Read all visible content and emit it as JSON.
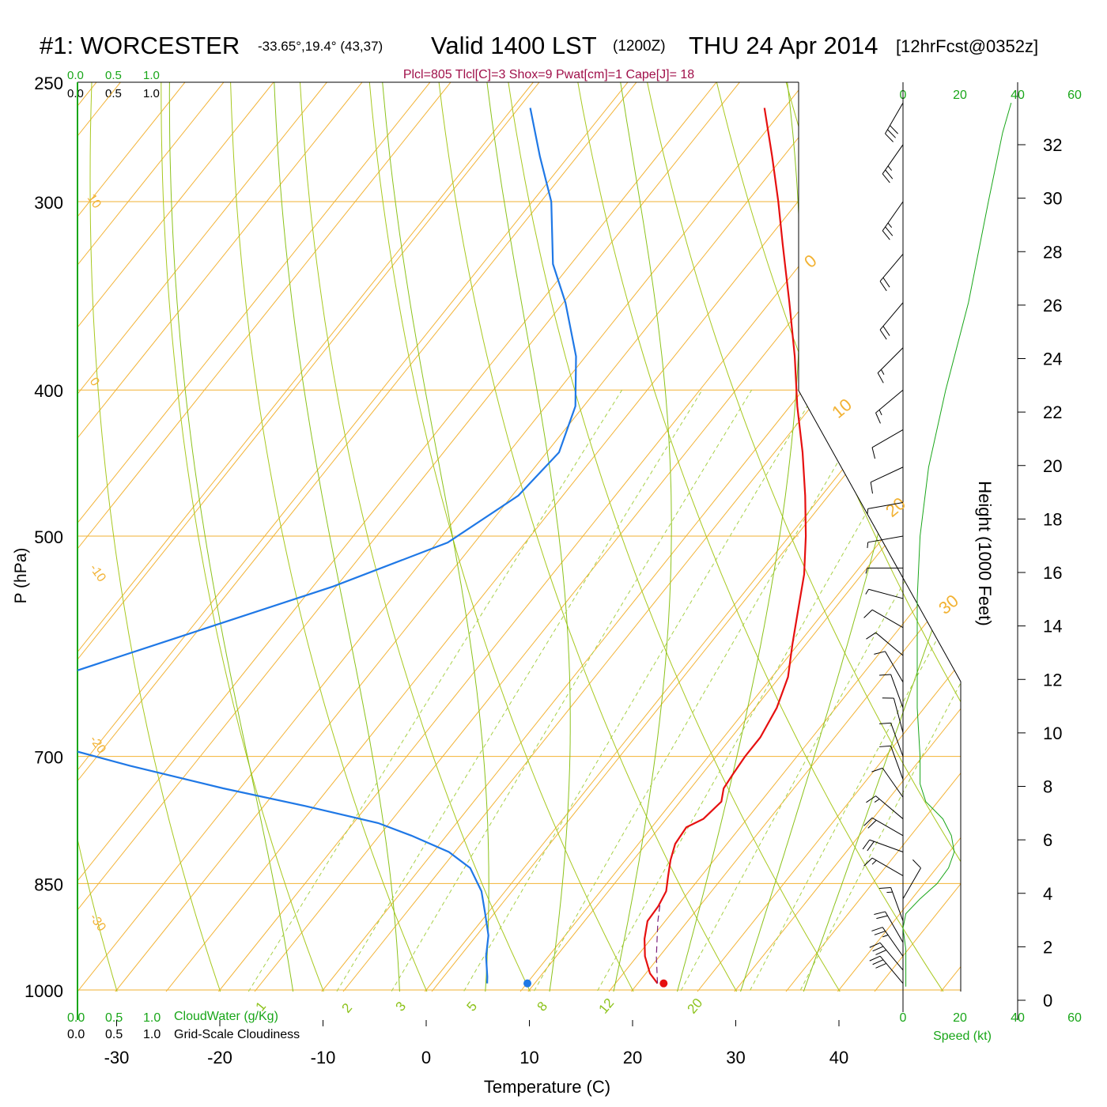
{
  "colors": {
    "isobar": "#f2b233",
    "isotherm": "#f2b233",
    "dry_adiabat": "#a8c81f",
    "moist_adiabat": "#8cc21a",
    "mixing_ratio": "#a8d048",
    "temperature": "#e61010",
    "dewpoint": "#1f78e6",
    "parcel": "#7a1f7a",
    "green_text": "#19a619",
    "indices_text": "#a0104a"
  },
  "header": {
    "station": "#1: WORCESTER",
    "coords": "-33.65°,19.4° (43,37)",
    "valid": "Valid 1400 LST",
    "zulu": "(1200Z)",
    "date": "THU 24 Apr 2014",
    "forecast": "[12hrFcst@0352z]",
    "indices": "Plcl=805 Tlcl[C]=3 Shox=9 Pwat[cm]=1 Cape[J]= 18"
  },
  "cloud_axis": {
    "top_ticks": [
      "0.0",
      "0.5",
      "1.0"
    ],
    "cloudwater_label": "CloudWater (g/Kg)",
    "cloudiness_label": "Grid-Scale Cloudiness"
  },
  "speed_axis": {
    "ticks": [
      "0",
      "20",
      "40",
      "60"
    ],
    "label": "Speed (kt)"
  },
  "chart_data": {
    "type": "skew-t",
    "xlabel": "Temperature (C)",
    "ylabel": "P (hPa)",
    "y2label": "Height (1000 Feet)",
    "x_ticks": [
      -30,
      -20,
      -10,
      0,
      10,
      20,
      30,
      40
    ],
    "pressure_levels": [
      250,
      300,
      400,
      500,
      700,
      850,
      1000
    ],
    "height_ticks_kft": [
      0,
      2,
      4,
      6,
      8,
      10,
      12,
      14,
      16,
      18,
      20,
      22,
      24,
      26,
      28,
      30,
      32
    ],
    "isotherm_labels": [
      "10",
      "0",
      "-10",
      "-20",
      "-30",
      "0",
      "10",
      "20",
      "30"
    ],
    "mixing_ratio_labels": [
      "1",
      "2",
      "3",
      "5",
      "8",
      "12",
      "20"
    ],
    "temperature_profile": [
      {
        "p": 990,
        "t": 21.9
      },
      {
        "p": 975,
        "t": 20.4
      },
      {
        "p": 950,
        "t": 18.6
      },
      {
        "p": 925,
        "t": 17.2
      },
      {
        "p": 900,
        "t": 16.1
      },
      {
        "p": 880,
        "t": 16.0
      },
      {
        "p": 860,
        "t": 15.6
      },
      {
        "p": 840,
        "t": 14.6
      },
      {
        "p": 820,
        "t": 13.6
      },
      {
        "p": 800,
        "t": 12.8
      },
      {
        "p": 780,
        "t": 12.6
      },
      {
        "p": 770,
        "t": 13.6
      },
      {
        "p": 750,
        "t": 14.0
      },
      {
        "p": 735,
        "t": 13.2
      },
      {
        "p": 720,
        "t": 13.0
      },
      {
        "p": 700,
        "t": 12.8
      },
      {
        "p": 680,
        "t": 12.8
      },
      {
        "p": 650,
        "t": 12.1
      },
      {
        "p": 620,
        "t": 10.8
      },
      {
        "p": 590,
        "t": 8.7
      },
      {
        "p": 560,
        "t": 6.6
      },
      {
        "p": 530,
        "t": 4.4
      },
      {
        "p": 500,
        "t": 1.6
      },
      {
        "p": 470,
        "t": -1.6
      },
      {
        "p": 440,
        "t": -5.2
      },
      {
        "p": 410,
        "t": -9.3
      },
      {
        "p": 380,
        "t": -13.4
      },
      {
        "p": 350,
        "t": -18.1
      },
      {
        "p": 320,
        "t": -23.3
      },
      {
        "p": 300,
        "t": -27.0
      },
      {
        "p": 280,
        "t": -31.1
      },
      {
        "p": 260,
        "t": -35.6
      }
    ],
    "dewpoint_profile": [
      {
        "p": 990,
        "t": 5.4
      },
      {
        "p": 980,
        "t": 4.9
      },
      {
        "p": 950,
        "t": 3.2
      },
      {
        "p": 920,
        "t": 1.8
      },
      {
        "p": 890,
        "t": -0.2
      },
      {
        "p": 860,
        "t": -2.3
      },
      {
        "p": 830,
        "t": -5.2
      },
      {
        "p": 810,
        "t": -8.5
      },
      {
        "p": 790,
        "t": -13.4
      },
      {
        "p": 775,
        "t": -17.6
      },
      {
        "p": 755,
        "t": -26.0
      },
      {
        "p": 735,
        "t": -35.3
      },
      {
        "p": 710,
        "t": -46.1
      },
      {
        "p": 690,
        "t": -54.3
      },
      {
        "p": 670,
        "t": -61.5
      },
      {
        "p": 660,
        "t": -63.8
      },
      {
        "p": 620,
        "t": -60.0
      },
      {
        "p": 580,
        "t": -50.5
      },
      {
        "p": 540,
        "t": -40.3
      },
      {
        "p": 505,
        "t": -32.6
      },
      {
        "p": 470,
        "t": -29.4
      },
      {
        "p": 440,
        "t": -28.8
      },
      {
        "p": 410,
        "t": -30.8
      },
      {
        "p": 380,
        "t": -34.6
      },
      {
        "p": 350,
        "t": -39.8
      },
      {
        "p": 330,
        "t": -44.0
      },
      {
        "p": 300,
        "t": -49.0
      },
      {
        "p": 280,
        "t": -53.6
      },
      {
        "p": 260,
        "t": -58.3
      }
    ],
    "parcel_trace": [
      {
        "p": 990,
        "t": 21.9
      },
      {
        "p": 950,
        "t": 19.7
      },
      {
        "p": 900,
        "t": 17.1
      },
      {
        "p": 875,
        "t": 15.9
      }
    ],
    "surface_temperature": {
      "p": 990,
      "t": 22.5
    },
    "surface_dewpoint": {
      "p": 990,
      "t": 9.3
    },
    "wind_speed_profile": [
      {
        "p": 995,
        "s": 1
      },
      {
        "p": 970,
        "s": 1
      },
      {
        "p": 940,
        "s": 1
      },
      {
        "p": 910,
        "s": 0
      },
      {
        "p": 890,
        "s": 1
      },
      {
        "p": 870,
        "s": 6
      },
      {
        "p": 850,
        "s": 12
      },
      {
        "p": 830,
        "s": 16
      },
      {
        "p": 810,
        "s": 18
      },
      {
        "p": 790,
        "s": 17
      },
      {
        "p": 770,
        "s": 14
      },
      {
        "p": 750,
        "s": 8
      },
      {
        "p": 730,
        "s": 6
      },
      {
        "p": 700,
        "s": 6
      },
      {
        "p": 650,
        "s": 5
      },
      {
        "p": 600,
        "s": 5
      },
      {
        "p": 550,
        "s": 5
      },
      {
        "p": 500,
        "s": 6
      },
      {
        "p": 450,
        "s": 9
      },
      {
        "p": 400,
        "s": 15
      },
      {
        "p": 350,
        "s": 23
      },
      {
        "p": 300,
        "s": 30
      },
      {
        "p": 270,
        "s": 35
      },
      {
        "p": 258,
        "s": 38
      }
    ],
    "wind_barbs": [
      {
        "p": 990,
        "dir": 40,
        "spd": 30
      },
      {
        "p": 970,
        "dir": 40,
        "spd": 30
      },
      {
        "p": 950,
        "dir": 35,
        "spd": 25
      },
      {
        "p": 930,
        "dir": 30,
        "spd": 20
      },
      {
        "p": 900,
        "dir": 20,
        "spd": 15
      },
      {
        "p": 870,
        "dir": 330,
        "spd": 10
      },
      {
        "p": 840,
        "dir": 60,
        "spd": 15
      },
      {
        "p": 810,
        "dir": 70,
        "spd": 20
      },
      {
        "p": 790,
        "dir": 60,
        "spd": 20
      },
      {
        "p": 770,
        "dir": 50,
        "spd": 15
      },
      {
        "p": 745,
        "dir": 35,
        "spd": 10
      },
      {
        "p": 725,
        "dir": 20,
        "spd": 10
      },
      {
        "p": 700,
        "dir": 20,
        "spd": 10
      },
      {
        "p": 675,
        "dir": 15,
        "spd": 10
      },
      {
        "p": 650,
        "dir": 20,
        "spd": 10
      },
      {
        "p": 625,
        "dir": 30,
        "spd": 10
      },
      {
        "p": 600,
        "dir": 50,
        "spd": 10
      },
      {
        "p": 575,
        "dir": 60,
        "spd": 10
      },
      {
        "p": 550,
        "dir": 75,
        "spd": 5
      },
      {
        "p": 525,
        "dir": 90,
        "spd": 5
      },
      {
        "p": 500,
        "dir": 100,
        "spd": 5
      },
      {
        "p": 475,
        "dir": 100,
        "spd": 5
      },
      {
        "p": 450,
        "dir": 115,
        "spd": 10
      },
      {
        "p": 425,
        "dir": 120,
        "spd": 10
      },
      {
        "p": 400,
        "dir": 130,
        "spd": 15
      },
      {
        "p": 375,
        "dir": 135,
        "spd": 15
      },
      {
        "p": 350,
        "dir": 140,
        "spd": 20
      },
      {
        "p": 325,
        "dir": 140,
        "spd": 20
      },
      {
        "p": 300,
        "dir": 145,
        "spd": 25
      },
      {
        "p": 275,
        "dir": 145,
        "spd": 25
      },
      {
        "p": 258,
        "dir": 150,
        "spd": 30
      }
    ]
  }
}
